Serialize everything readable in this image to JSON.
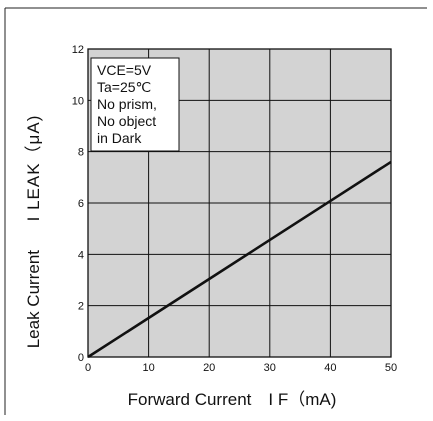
{
  "chart_data": {
    "type": "line",
    "title": "",
    "xlabel": "Forward Current　I F（mA)",
    "ylabel_prefix": "Leak Current",
    "ylabel_symbol": "I LEAK（μA)",
    "xlim": [
      0,
      50
    ],
    "ylim": [
      0,
      12
    ],
    "x_ticks": [
      0,
      10,
      20,
      30,
      40,
      50
    ],
    "y_ticks": [
      0,
      2,
      4,
      6,
      8,
      10,
      12
    ],
    "grid": true,
    "plot_background": "#d3d3d3",
    "line_color": "#111111",
    "conditions": [
      "VCE=5V",
      "Ta=25℃",
      "No prism,",
      "No object",
      "in Dark"
    ],
    "conditions_placement": "top-left",
    "series": [
      {
        "x": [
          0,
          10,
          20,
          30,
          40,
          50
        ],
        "values": [
          0,
          1.52,
          3.04,
          4.56,
          6.08,
          7.6
        ]
      }
    ]
  }
}
